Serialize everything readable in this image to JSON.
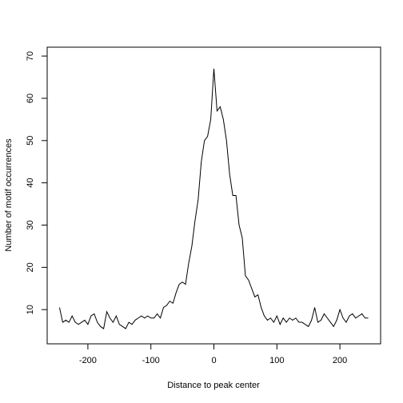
{
  "chart_data": {
    "type": "line",
    "x_label": "Distance to peak center",
    "y_label": "Number of motif occurrences",
    "x": [
      -245,
      -240,
      -235,
      -230,
      -225,
      -220,
      -215,
      -210,
      -205,
      -200,
      -195,
      -190,
      -185,
      -180,
      -175,
      -170,
      -165,
      -160,
      -155,
      -150,
      -145,
      -140,
      -135,
      -130,
      -125,
      -120,
      -115,
      -110,
      -105,
      -100,
      -95,
      -90,
      -85,
      -80,
      -75,
      -70,
      -65,
      -60,
      -55,
      -50,
      -45,
      -40,
      -35,
      -30,
      -25,
      -20,
      -15,
      -10,
      -5,
      0,
      5,
      10,
      15,
      20,
      25,
      30,
      35,
      40,
      45,
      50,
      55,
      60,
      65,
      70,
      75,
      80,
      85,
      90,
      95,
      100,
      105,
      110,
      115,
      120,
      125,
      130,
      135,
      140,
      145,
      150,
      155,
      160,
      165,
      170,
      175,
      180,
      185,
      190,
      195,
      200,
      205,
      210,
      215,
      220,
      225,
      230,
      235,
      240,
      245
    ],
    "series": [
      {
        "color": "#000000",
        "values": [
          10.5,
          7,
          7.5,
          7,
          8.5,
          7,
          6.5,
          7,
          7.5,
          6.5,
          8.5,
          9,
          7,
          6,
          5.5,
          9.5,
          8,
          7,
          8.5,
          6.5,
          6,
          5.5,
          7,
          6.5,
          7.5,
          8,
          8.5,
          8,
          8.5,
          8,
          8,
          9,
          8,
          10.5,
          11,
          12,
          11.5,
          14,
          16,
          16.5,
          16,
          21,
          25,
          31,
          36,
          45,
          50,
          51,
          55,
          67,
          57,
          58,
          55,
          50,
          42,
          37,
          37,
          30,
          27,
          18,
          17,
          15,
          13,
          13.5,
          10.5,
          8.5,
          7.5,
          8,
          7,
          8.5,
          6.5,
          8,
          7,
          8,
          7.5,
          8,
          7,
          7,
          6.5,
          6,
          7.5,
          10.5,
          7,
          7.5,
          9,
          8,
          7,
          6,
          7.5,
          10,
          8,
          7,
          8.5,
          9,
          8,
          8.5,
          9,
          8,
          8
        ]
      }
    ],
    "xlim": [
      -264.6,
      264.6
    ],
    "xticks": [
      -200,
      -100,
      0,
      100,
      200
    ],
    "ylim": [
      1.9,
      72.1
    ],
    "yticks": [
      10,
      20,
      30,
      40,
      50,
      60,
      70
    ]
  }
}
